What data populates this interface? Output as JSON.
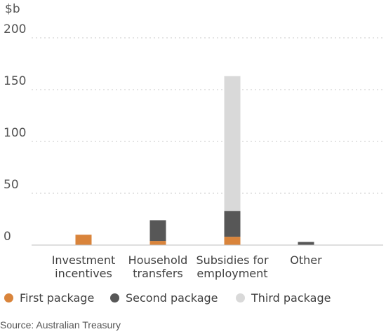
{
  "chart_data": {
    "type": "bar",
    "stacked": true,
    "ylabel": "$b",
    "ylim": [
      0,
      200
    ],
    "yticks": [
      "0",
      "50",
      "100",
      "150",
      "200"
    ],
    "grid": true,
    "legend_position": "bottom",
    "categories": [
      [
        "Investment",
        "incentives"
      ],
      [
        "Household",
        "transfers"
      ],
      [
        "Subsidies for",
        "employment"
      ],
      [
        "Other"
      ]
    ],
    "series": [
      {
        "name": "First package",
        "color": "#d9843b",
        "values": [
          10,
          4,
          8,
          0
        ]
      },
      {
        "name": "Second package",
        "color": "#575757",
        "values": [
          0,
          20,
          25,
          3
        ]
      },
      {
        "name": "Third package",
        "color": "#d9d9d9",
        "values": [
          0,
          0,
          130,
          0
        ]
      }
    ]
  },
  "source": "Source: Australian Treasury"
}
